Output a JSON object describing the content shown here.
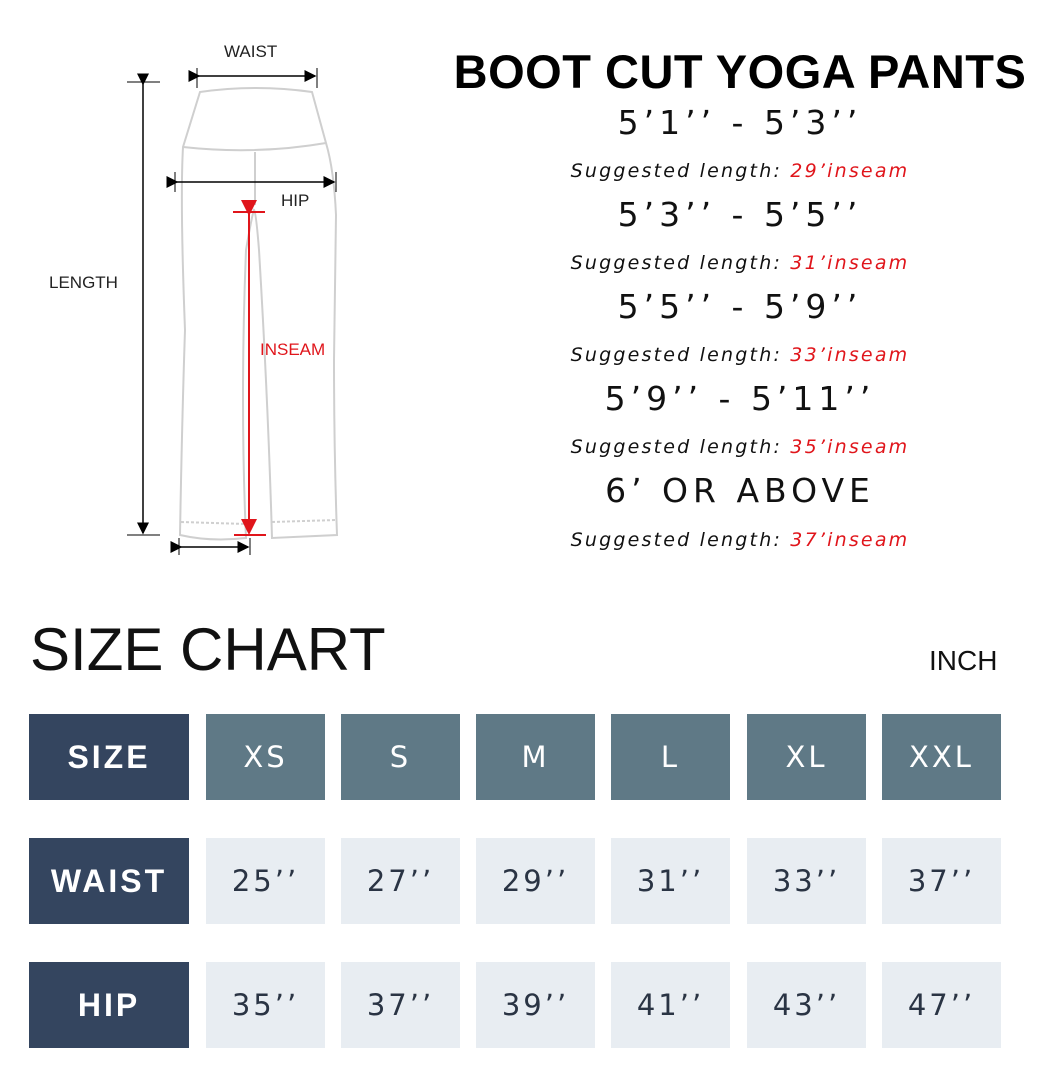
{
  "diagram": {
    "labels": {
      "waist": "WAIST",
      "hip": "HIP",
      "length": "LENGTH",
      "inseam": "INSEAM"
    },
    "colors": {
      "inseam": "#e0151b",
      "outline": "#cfcfcf"
    }
  },
  "title": "BOOT CUT YOGA PANTS",
  "length_guide": [
    {
      "height": "5’1’’ - 5’3’’",
      "prefix": "Suggested length:",
      "inseam": "29’inseam"
    },
    {
      "height": "5’3’’ - 5’5’’",
      "prefix": "Suggested length:",
      "inseam": "31’inseam"
    },
    {
      "height": "5’5’’ - 5’9’’",
      "prefix": "Suggested length:",
      "inseam": "33’inseam"
    },
    {
      "height": "5’9’’ - 5’11’’",
      "prefix": "Suggested length:",
      "inseam": "35’inseam"
    },
    {
      "height": "6’ OR ABOVE",
      "prefix": "Suggested length:",
      "inseam": "37’inseam"
    }
  ],
  "size_chart": {
    "title": "SIZE CHART",
    "unit": "INCH",
    "colors": {
      "label_bg": "#34455f",
      "header_bg": "#5f7986",
      "value_bg": "#e8edf2"
    },
    "rows": [
      {
        "label": "SIZE",
        "values": [
          "XS",
          "S",
          "M",
          "L",
          "XL",
          "XXL"
        ]
      },
      {
        "label": "WAIST",
        "values": [
          "25’’",
          "27’’",
          "29’’",
          "31’’",
          "33’’",
          "37’’"
        ]
      },
      {
        "label": "HIP",
        "values": [
          "35’’",
          "37’’",
          "39’’",
          "41’’",
          "43’’",
          "47’’"
        ]
      }
    ]
  }
}
